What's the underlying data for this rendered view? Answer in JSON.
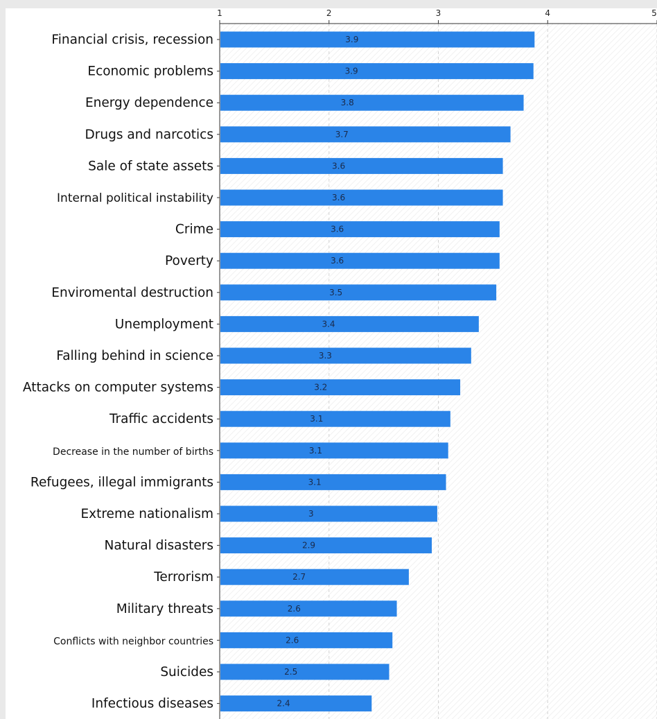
{
  "chart_data": {
    "type": "bar",
    "orientation": "horizontal",
    "title": "",
    "xlabel": "",
    "ylabel": "",
    "xlim": [
      1,
      5
    ],
    "xticks": [
      "1",
      "2",
      "3",
      "4",
      "5"
    ],
    "grid": true,
    "bar_color": "#2a84e8",
    "categories": [
      "Financial crisis, recession",
      "Economic problems",
      "Energy dependence",
      "Drugs and narcotics",
      "Sale of state assets",
      "Internal political instability",
      "Crime",
      "Poverty",
      "Enviromental destruction",
      "Unemployment",
      "Falling behind in science",
      "Attacks on computer systems",
      "Traffic accidents",
      "Decrease in the number of births",
      "Refugees, illegal immigrants",
      "Extreme nationalism",
      "Natural disasters",
      "Terrorism",
      "Military threats",
      "Conflicts with neighbor countries",
      "Suicides",
      "Infectious diseases"
    ],
    "values": [
      3.88,
      3.87,
      3.78,
      3.66,
      3.59,
      3.59,
      3.56,
      3.56,
      3.53,
      3.37,
      3.3,
      3.2,
      3.11,
      3.09,
      3.07,
      2.99,
      2.94,
      2.73,
      2.62,
      2.58,
      2.55,
      2.39
    ],
    "data_labels": [
      "3.9",
      "3.9",
      "3.8",
      "3.7",
      "3.6",
      "3.6",
      "3.6",
      "3.6",
      "3.5",
      "3.4",
      "3.3",
      "3.2",
      "3.1",
      "3.1",
      "3.1",
      "3",
      "2.9",
      "2.7",
      "2.6",
      "2.6",
      "2.5",
      "2.4"
    ]
  }
}
